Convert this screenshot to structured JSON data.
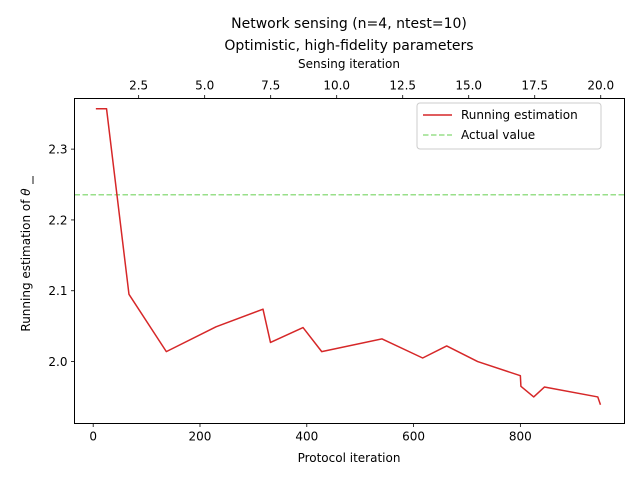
{
  "chart_data": {
    "type": "line",
    "title_line1": "Network sensing (n=4, ntest=10)",
    "title_line2": "Optimistic, high-fidelity parameters",
    "xlabel": "Protocol iteration",
    "ylabel_prefix": "Running estimation of ",
    "ylabel_symbol": "θ",
    "x2label": "Sensing iteration",
    "xlim": [
      -35,
      995
    ],
    "ylim": [
      1.9125,
      2.3715
    ],
    "x2lim": [
      0.07,
      20.9
    ],
    "xticks": [
      0,
      200,
      400,
      600,
      800
    ],
    "xtick_labels": [
      "0",
      "200",
      "400",
      "600",
      "800"
    ],
    "yticks": [
      2.0,
      2.1,
      2.2,
      2.3
    ],
    "ytick_labels": [
      "2.0",
      "2.1",
      "2.2",
      "2.3"
    ],
    "x2ticks": [
      2.5,
      5.0,
      7.5,
      10.0,
      12.5,
      15.0,
      17.5,
      20.0
    ],
    "x2tick_labels": [
      "2.5",
      "5.0",
      "7.5",
      "10.0",
      "12.5",
      "15.0",
      "17.5",
      "20.0"
    ],
    "legend_position": "upper right",
    "grid": false,
    "series": [
      {
        "name": "Running estimation",
        "style": "solid",
        "color": "#d62728",
        "x": [
          5,
          25,
          67,
          137,
          230,
          318,
          332,
          393,
          428,
          541,
          617,
          662,
          720,
          800,
          801,
          825,
          845,
          945,
          950
        ],
        "y": [
          2.357,
          2.357,
          2.095,
          2.014,
          2.049,
          2.074,
          2.027,
          2.048,
          2.014,
          2.032,
          2.005,
          2.022,
          2.0,
          1.98,
          1.965,
          1.95,
          1.964,
          1.95,
          1.939
        ]
      },
      {
        "name": "Actual value",
        "style": "dashed",
        "color": "#98df8a",
        "y_constant": 2.2355
      }
    ]
  }
}
